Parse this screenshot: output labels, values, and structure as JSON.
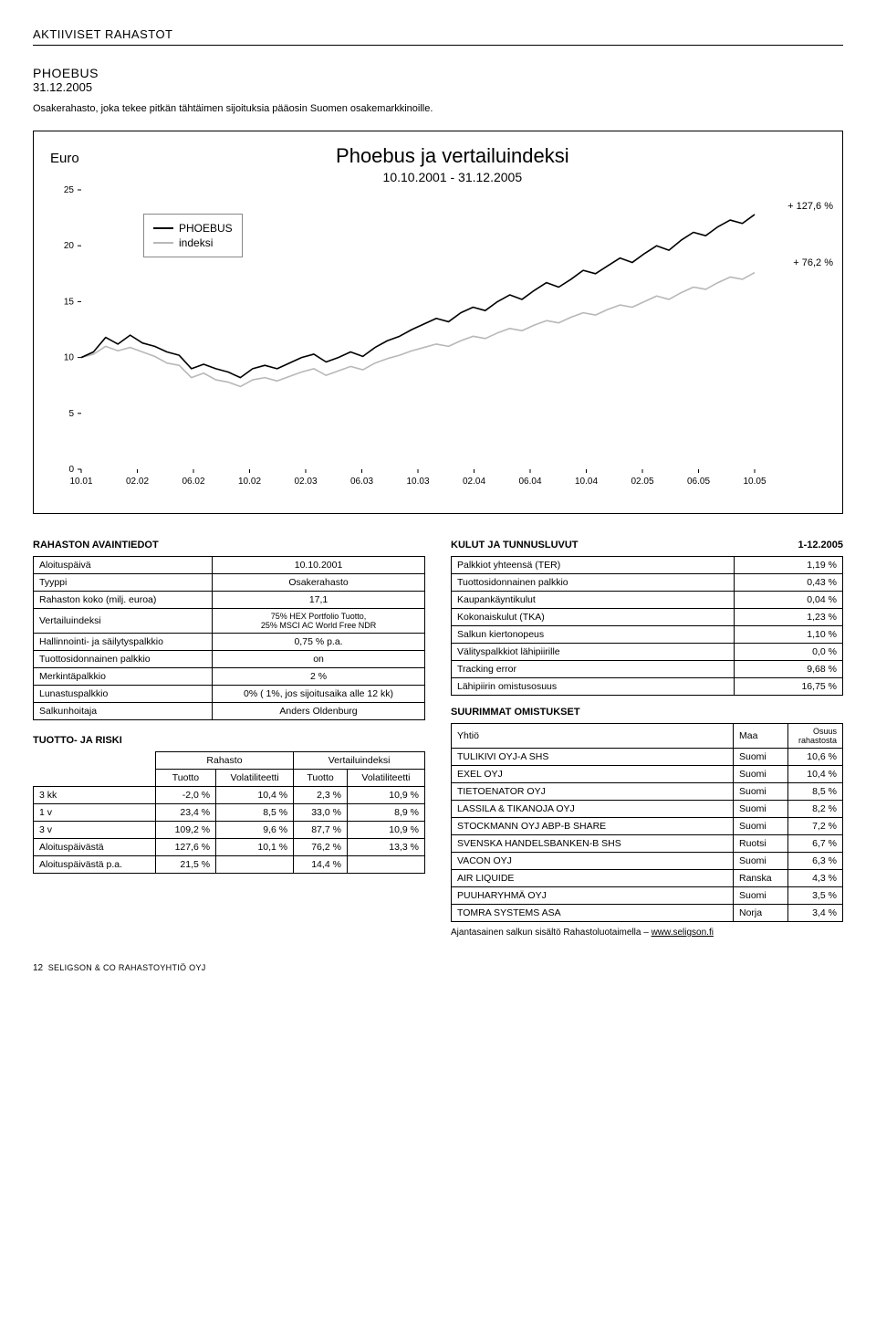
{
  "section_title": "AKTIIVISET RAHASTOT",
  "fund_name": "PHOEBUS",
  "date": "31.12.2005",
  "description": "Osakerahasto, joka tekee pitkän tähtäimen sijoituksia pääosin Suomen osakemarkkinoille.",
  "chart": {
    "euro_label": "Euro",
    "title": "Phoebus ja vertailuindeksi",
    "subtitle": "10.10.2001 - 31.12.2005",
    "legend": {
      "series1": "PHOEBUS",
      "series2": "indeksi"
    },
    "series1_color": "#000000",
    "series2_color": "#b8b8b8",
    "axis_color": "#000000",
    "bg": "#ffffff",
    "pct_1": "+ 127,6 %",
    "pct_2": "+ 76,2 %",
    "y_ticks": [
      0,
      5,
      10,
      15,
      20,
      25
    ],
    "x_ticks": [
      "10.01",
      "02.02",
      "06.02",
      "10.02",
      "02.03",
      "06.03",
      "10.03",
      "02.04",
      "06.04",
      "10.04",
      "02.05",
      "06.05",
      "10.05"
    ],
    "phoebus": [
      10.0,
      10.5,
      11.8,
      11.2,
      12.0,
      11.3,
      11.0,
      10.5,
      10.2,
      9.0,
      9.4,
      9.0,
      8.7,
      8.2,
      9.0,
      9.3,
      9.0,
      9.5,
      10.0,
      10.3,
      9.6,
      10.0,
      10.5,
      10.1,
      10.9,
      11.5,
      11.9,
      12.5,
      13.0,
      13.5,
      13.2,
      14.0,
      14.5,
      14.2,
      15.0,
      15.6,
      15.2,
      16.0,
      16.7,
      16.3,
      17.0,
      17.8,
      17.5,
      18.2,
      18.9,
      18.5,
      19.3,
      20.0,
      19.6,
      20.5,
      21.2,
      20.9,
      21.7,
      22.3,
      22.0,
      22.8
    ],
    "indeksi": [
      10.0,
      10.3,
      11.0,
      10.6,
      10.9,
      10.5,
      10.1,
      9.5,
      9.3,
      8.2,
      8.6,
      8.0,
      7.8,
      7.4,
      8.0,
      8.2,
      7.9,
      8.3,
      8.7,
      9.0,
      8.4,
      8.8,
      9.2,
      8.9,
      9.5,
      9.9,
      10.2,
      10.6,
      10.9,
      11.2,
      11.0,
      11.5,
      11.9,
      11.7,
      12.2,
      12.6,
      12.4,
      12.9,
      13.3,
      13.1,
      13.6,
      14.0,
      13.8,
      14.3,
      14.7,
      14.5,
      15.0,
      15.5,
      15.2,
      15.8,
      16.3,
      16.1,
      16.7,
      17.2,
      17.0,
      17.6
    ]
  },
  "left": {
    "block_title": "RAHASTON AVAINTIEDOT",
    "rows": [
      [
        "Aloituspäivä",
        "10.10.2001"
      ],
      [
        "Tyyppi",
        "Osakerahasto"
      ],
      [
        "Rahaston koko (milj. euroa)",
        "17,1"
      ],
      [
        "Vertailuindeksi",
        "75% HEX Portfolio Tuotto,\n25% MSCI AC World Free NDR"
      ],
      [
        "Hallinnointi- ja säilytyspalkkio",
        "0,75 % p.a."
      ],
      [
        "Tuottosidonnainen palkkio",
        "on"
      ],
      [
        "Merkintäpalkkio",
        "2 %"
      ],
      [
        "Lunastuspalkkio",
        "0% ( 1%, jos sijoitusaika alle 12 kk)"
      ],
      [
        "Salkunhoitaja",
        "Anders Oldenburg"
      ]
    ],
    "risk_title": "TUOTTO- JA RISKI",
    "risk_headers_top": [
      "",
      "Rahasto",
      "Vertailuindeksi"
    ],
    "risk_headers": [
      "",
      "Tuotto",
      "Volatiliteetti",
      "Tuotto",
      "Volatiliteetti"
    ],
    "risk_rows": [
      [
        "3 kk",
        "-2,0 %",
        "10,4 %",
        "2,3 %",
        "10,9 %"
      ],
      [
        "1 v",
        "23,4 %",
        "8,5 %",
        "33,0 %",
        "8,9 %"
      ],
      [
        "3 v",
        "109,2 %",
        "9,6 %",
        "87,7 %",
        "10,9 %"
      ],
      [
        "Aloituspäivästä",
        "127,6 %",
        "10,1 %",
        "76,2 %",
        "13,3 %"
      ],
      [
        "Aloituspäivästä p.a.",
        "21,5 %",
        "",
        "14,4 %",
        ""
      ]
    ]
  },
  "right": {
    "block_title": "KULUT JA TUNNUSLUVUT",
    "period": "1-12.2005",
    "rows": [
      [
        "Palkkiot yhteensä (TER)",
        "1,19 %"
      ],
      [
        "Tuottosidonnainen palkkio",
        "0,43 %"
      ],
      [
        "Kaupankäyntikulut",
        "0,04 %"
      ],
      [
        "Kokonaiskulut (TKA)",
        "1,23 %"
      ],
      [
        "Salkun kiertonopeus",
        "1,10 %"
      ],
      [
        "Välityspalkkiot lähipiirille",
        "0,0 %"
      ],
      [
        "Tracking error",
        "9,68 %"
      ],
      [
        "Lähipiirin omistusosuus",
        "16,75 %"
      ]
    ],
    "holdings_title": "SUURIMMAT OMISTUKSET",
    "holdings_headers": [
      "Yhtiö",
      "Maa",
      "Osuus rahastosta"
    ],
    "holdings": [
      [
        "TULIKIVI OYJ-A SHS",
        "Suomi",
        "10,6 %"
      ],
      [
        "EXEL OYJ",
        "Suomi",
        "10,4 %"
      ],
      [
        "TIETOENATOR OYJ",
        "Suomi",
        "8,5 %"
      ],
      [
        "LASSILA & TIKANOJA OYJ",
        "Suomi",
        "8,2 %"
      ],
      [
        "STOCKMANN OYJ ABP-B SHARE",
        "Suomi",
        "7,2 %"
      ],
      [
        "SVENSKA HANDELSBANKEN-B SHS",
        "Ruotsi",
        "6,7 %"
      ],
      [
        "VACON OYJ",
        "Suomi",
        "6,3 %"
      ],
      [
        "AIR LIQUIDE",
        "Ranska",
        "4,3 %"
      ],
      [
        "PUUHARYHMÄ OYJ",
        "Suomi",
        "3,5 %"
      ],
      [
        "TOMRA SYSTEMS ASA",
        "Norja",
        "3,4 %"
      ]
    ],
    "footnote_prefix": "Ajantasainen salkun sisältö Rahastoluotaimella – ",
    "footnote_link": "www.seligson.fi"
  },
  "footer": {
    "page": "12",
    "company": "SELIGSON & CO RAHASTOYHTIÖ OYJ"
  }
}
